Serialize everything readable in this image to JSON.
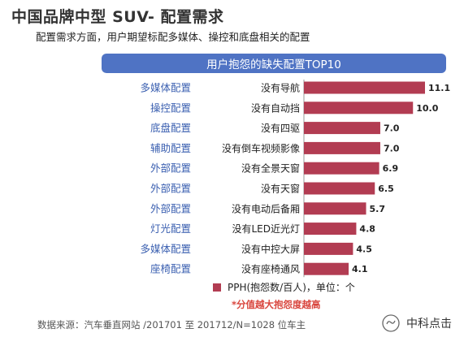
{
  "title": "中国品牌中型 SUV- 配置需求",
  "subtitle": "配置需求方面，用户期望标配多媒体、操控和底盘相关的配置",
  "chart_data": {
    "type": "bar",
    "orientation": "horizontal",
    "title": "用户抱怨的缺失配置TOP10",
    "groups": [
      "多媒体配置",
      "操控配置",
      "底盘配置",
      "辅助配置",
      "外部配置",
      "外部配置",
      "外部配置",
      "灯光配置",
      "多媒体配置",
      "座椅配置"
    ],
    "categories": [
      "没有导航",
      "没有自动挡",
      "没有四驱",
      "没有倒车视频影像",
      "没有全景天窗",
      "没有天窗",
      "没有电动后备厢",
      "没有LED近光灯",
      "没有中控大屏",
      "没有座椅通风"
    ],
    "values": [
      11.1,
      10.0,
      7.0,
      7.0,
      6.9,
      6.5,
      5.7,
      4.8,
      4.5,
      4.1
    ],
    "value_labels": [
      "11.1",
      "10.0",
      "7.0",
      "7.0",
      "6.9",
      "6.5",
      "5.7",
      "4.8",
      "4.5",
      "4.1"
    ],
    "series_name": "PPH(抱怨数/百人)，单位：个",
    "xlim": [
      0,
      11.1
    ],
    "bar_color": "#b23c52",
    "group_color": "#3a5fb0",
    "banner_color": "#4f73c4"
  },
  "note": "*分值越大抱怨度越高",
  "source": "数据来源：汽车垂直网站 /201701 至 201712/N=1028 位车主",
  "watermark": "中科点击"
}
